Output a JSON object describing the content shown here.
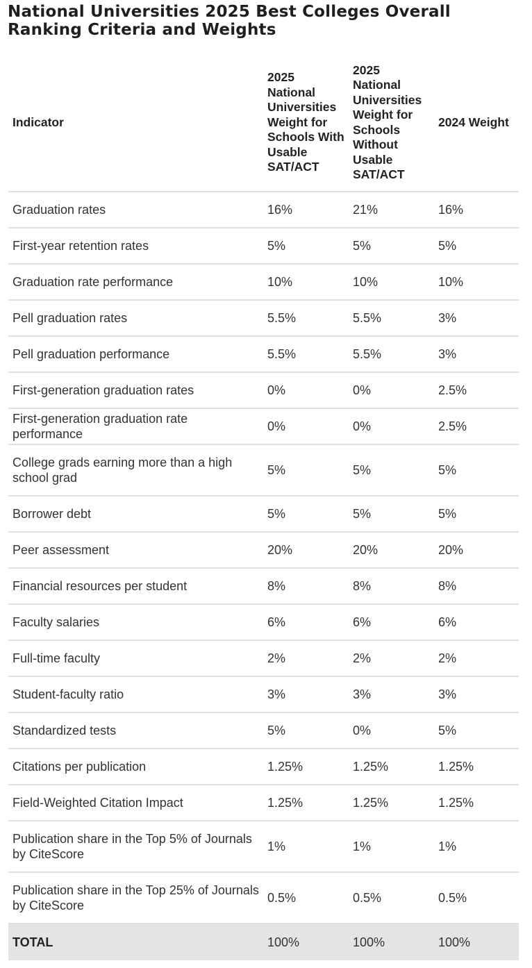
{
  "title": "National Universities 2025 Best Colleges Overall Ranking Criteria and Weights",
  "table": {
    "headers": [
      "Indicator",
      "2025 National Universities Weight for Schools With Usable SAT/ACT",
      "2025 National Universities Weight for Schools Without Usable SAT/ACT",
      "2024 Weight"
    ],
    "rows": [
      [
        "Graduation rates",
        "16%",
        "21%",
        "16%"
      ],
      [
        "First-year retention rates",
        "5%",
        "5%",
        "5%"
      ],
      [
        "Graduation rate performance",
        "10%",
        "10%",
        "10%"
      ],
      [
        "Pell graduation rates",
        "5.5%",
        "5.5%",
        "3%"
      ],
      [
        "Pell graduation performance",
        "5.5%",
        "5.5%",
        "3%"
      ],
      [
        "First-generation graduation rates",
        "0%",
        "0%",
        "2.5%"
      ],
      [
        "First-generation graduation rate performance",
        "0%",
        "0%",
        "2.5%"
      ],
      [
        "College grads earning more than a high school grad",
        "5%",
        "5%",
        "5%"
      ],
      [
        "Borrower debt",
        "5%",
        "5%",
        "5%"
      ],
      [
        "Peer assessment",
        "20%",
        "20%",
        "20%"
      ],
      [
        "Financial resources per student",
        "8%",
        "8%",
        "8%"
      ],
      [
        "Faculty salaries",
        "6%",
        "6%",
        "6%"
      ],
      [
        "Full-time faculty",
        "2%",
        "2%",
        "2%"
      ],
      [
        "Student-faculty ratio",
        "3%",
        "3%",
        "3%"
      ],
      [
        "Standardized tests",
        "5%",
        "0%",
        "5%"
      ],
      [
        "Citations per publication",
        "1.25%",
        "1.25%",
        "1.25%"
      ],
      [
        "Field-Weighted Citation Impact",
        "1.25%",
        "1.25%",
        "1.25%"
      ],
      [
        "Publication share in the Top 5% of Journals by CiteScore",
        "1%",
        "1%",
        "1%"
      ],
      [
        "Publication share in the Top 25% of Journals by CiteScore",
        "0.5%",
        "0.5%",
        "0.5%"
      ]
    ],
    "total": [
      "TOTAL",
      "100%",
      "100%",
      "100%"
    ]
  }
}
